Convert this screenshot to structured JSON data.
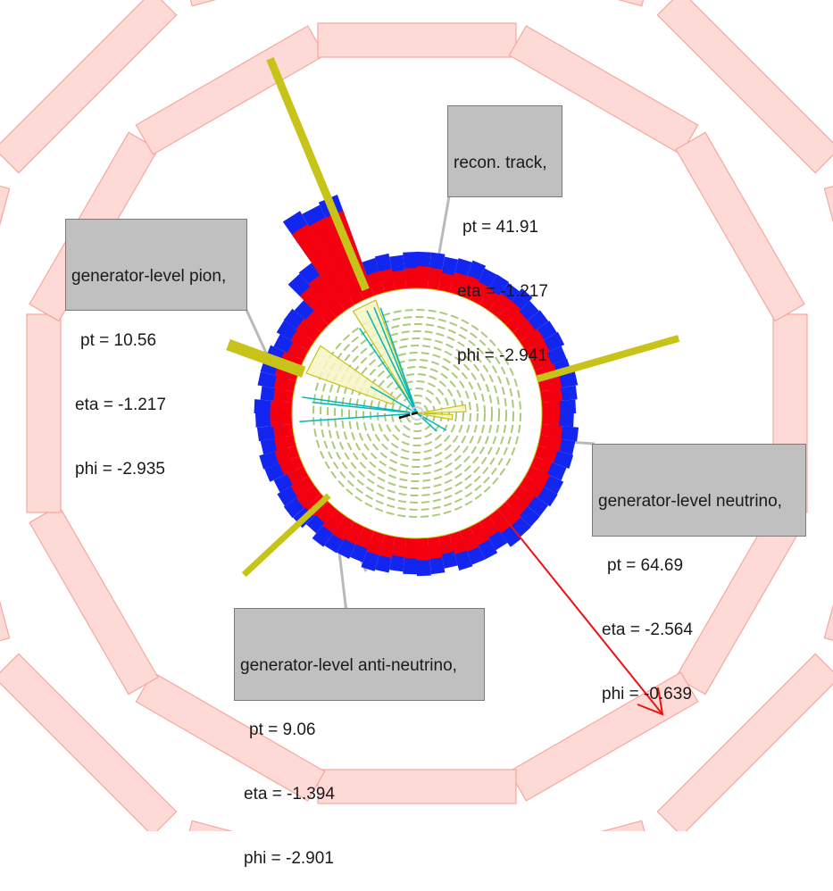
{
  "colors": {
    "muon_chamber": "#f9b6ad",
    "ecal_energy": "#f5000f",
    "hcal_energy": "#1326f0",
    "jet": "#c8c318",
    "track": "#00b8b8",
    "tracker_layers": "#a8cc7a",
    "met_arrow": "#ee1111",
    "label_bg": "#c0c0c0",
    "leader_line": "#b3b3b3"
  },
  "labels": {
    "track": {
      "title": "recon. track,",
      "pt": "pt = 41.91",
      "eta": "eta = -1.217",
      "phi": "phi = -2.941"
    },
    "pion": {
      "title": "generator-level pion,",
      "pt": "pt = 10.56",
      "eta": "eta = -1.217",
      "phi": "phi = -2.935"
    },
    "neutrino": {
      "title": "generator-level neutrino,",
      "pt": "pt = 64.69",
      "eta": "eta = -2.564",
      "phi": "phi = -0.639"
    },
    "antineutrino": {
      "title": "generator-level anti-neutrino,",
      "pt": "pt = 9.06",
      "eta": "eta = -1.394",
      "phi": "phi = -2.901"
    }
  }
}
